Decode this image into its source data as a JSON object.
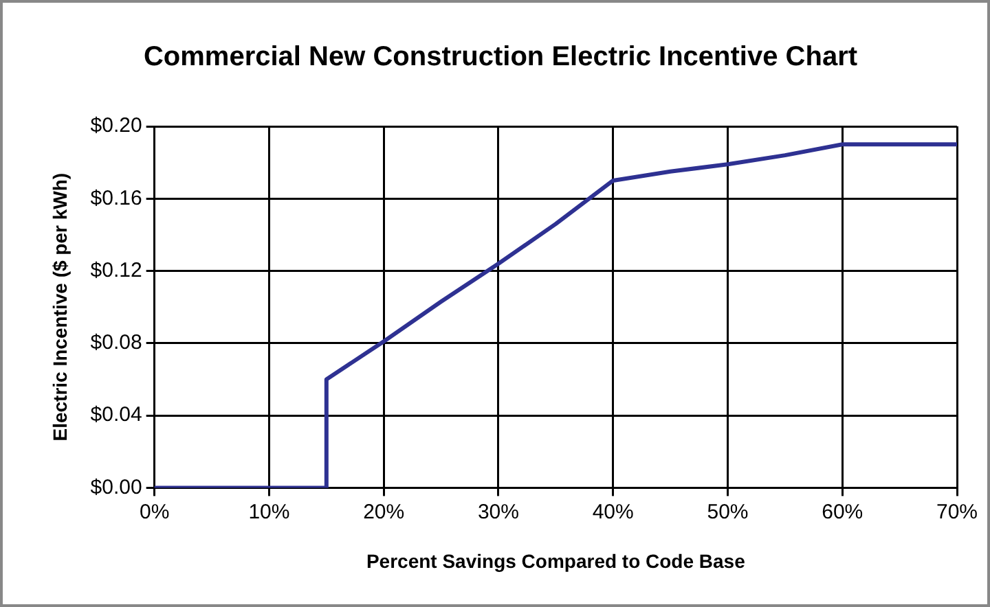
{
  "chart_data": {
    "type": "line",
    "title": "Commercial New Construction Electric Incentive Chart",
    "xlabel": "Percent Savings Compared to Code Base",
    "ylabel": "Electric Incentive ($ per kWh)",
    "x": [
      0,
      15,
      15,
      20,
      25,
      30,
      35,
      40,
      45,
      50,
      55,
      60,
      70
    ],
    "series": [
      {
        "color": "#2e3192",
        "values": [
          0,
          0,
          0.06,
          0.081,
          0.103,
          0.124,
          0.146,
          0.17,
          0.175,
          0.179,
          0.184,
          0.19,
          0.19
        ]
      }
    ],
    "xlim": [
      0,
      70
    ],
    "xticks": [
      {
        "value": 0,
        "label": "0%"
      },
      {
        "value": 10,
        "label": "10%"
      },
      {
        "value": 20,
        "label": "20%"
      },
      {
        "value": 30,
        "label": "30%"
      },
      {
        "value": 40,
        "label": "40%"
      },
      {
        "value": 50,
        "label": "50%"
      },
      {
        "value": 60,
        "label": "60%"
      },
      {
        "value": 70,
        "label": "70%"
      }
    ],
    "ylim": [
      0,
      0.2
    ],
    "yticks": [
      {
        "value": 0,
        "label": "$0.00"
      },
      {
        "value": 0.04,
        "label": "$0.04"
      },
      {
        "value": 0.08,
        "label": "$0.08"
      },
      {
        "value": 0.12,
        "label": "$0.12"
      },
      {
        "value": 0.16,
        "label": "$0.16"
      },
      {
        "value": 0.2,
        "label": "$0.20"
      }
    ],
    "grid": true,
    "legend": false,
    "marker": "none",
    "line_style": "solid"
  }
}
